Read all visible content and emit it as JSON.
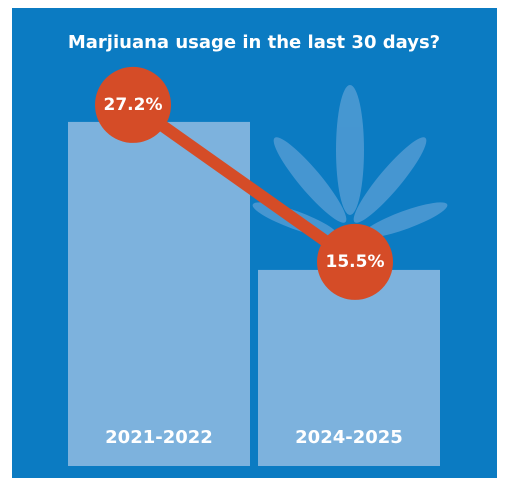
{
  "chart_data": {
    "type": "bar",
    "title": "Marjiuana usage in the last 30 days?",
    "categories": [
      "2021-2022",
      "2024-2025"
    ],
    "values": [
      27.2,
      15.5
    ],
    "value_labels": [
      "27.2%",
      "15.5%"
    ],
    "color": "#7db2dd",
    "line_color": "#d54c27",
    "background": "#0b7bc2"
  }
}
